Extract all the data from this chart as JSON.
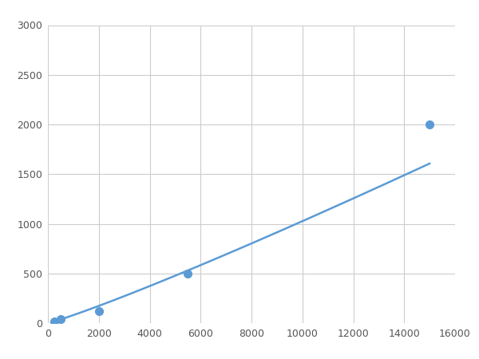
{
  "x": [
    250,
    500,
    2000,
    5500,
    15000
  ],
  "y": [
    20,
    40,
    120,
    500,
    2000
  ],
  "line_color": "#5b9bd5",
  "marker_color": "#5b9bd5",
  "marker_size": 7,
  "line_width": 1.8,
  "xlim": [
    0,
    16000
  ],
  "ylim": [
    0,
    3000
  ],
  "xticks": [
    0,
    2000,
    4000,
    6000,
    8000,
    10000,
    12000,
    14000,
    16000
  ],
  "yticks": [
    0,
    500,
    1000,
    1500,
    2000,
    2500,
    3000
  ],
  "grid_color": "#cccccc",
  "background_color": "#ffffff",
  "figsize": [
    6.0,
    4.5
  ],
  "dpi": 100
}
